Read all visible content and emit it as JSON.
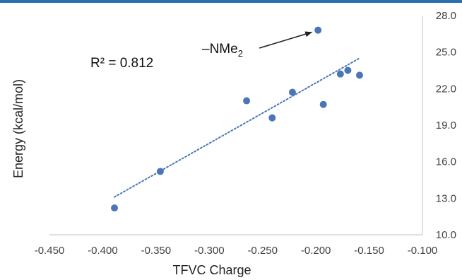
{
  "chart_data": {
    "type": "scatter",
    "title": "",
    "xlabel": "TFVC Charge",
    "ylabel": "Energy (kcal/mol)",
    "xlim": [
      -0.45,
      -0.1
    ],
    "ylim": [
      10.0,
      28.0
    ],
    "x_ticks": [
      "-0.450",
      "-0.400",
      "-0.350",
      "-0.300",
      "-0.250",
      "-0.200",
      "-0.150",
      "-0.100"
    ],
    "y_ticks": [
      "10.0",
      "13.0",
      "16.0",
      "19.0",
      "22.0",
      "25.0",
      "28.0"
    ],
    "y_axis_position": "right",
    "grid": false,
    "legend": "none",
    "series": [
      {
        "points": [
          {
            "x": -0.389,
            "y": 12.2
          },
          {
            "x": -0.346,
            "y": 15.2
          },
          {
            "x": -0.265,
            "y": 21.0
          },
          {
            "x": -0.241,
            "y": 19.6
          },
          {
            "x": -0.222,
            "y": 21.7
          },
          {
            "x": -0.198,
            "y": 26.8
          },
          {
            "x": -0.193,
            "y": 20.7
          },
          {
            "x": -0.177,
            "y": 23.2
          },
          {
            "x": -0.17,
            "y": 23.5
          },
          {
            "x": -0.159,
            "y": 23.1
          }
        ],
        "color": "#4a76b8"
      }
    ],
    "trendline": {
      "type": "linear",
      "from": {
        "x": -0.389,
        "y": 13.1
      },
      "to": {
        "x": -0.159,
        "y": 24.5
      },
      "color": "#4a76b8",
      "style": "dotted"
    },
    "annotations": {
      "r2_label": "R² = 0.812",
      "nme2_prefix": "–NMe",
      "nme2_subscript": "2",
      "arrow_target": {
        "x": -0.198,
        "y": 26.8
      }
    },
    "accent_bar_color": "#2a6fb0"
  }
}
